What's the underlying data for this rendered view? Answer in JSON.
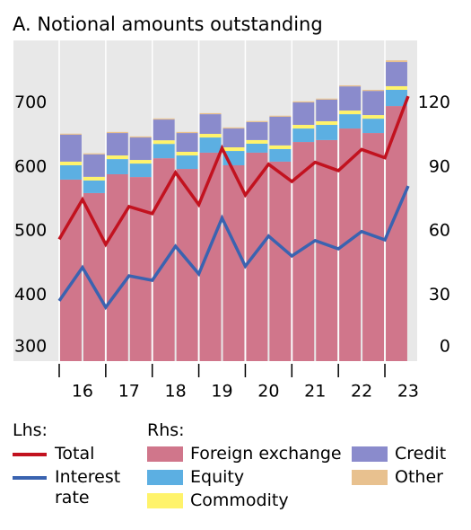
{
  "chart_data": {
    "type": "bar",
    "title": "A. Notional amounts outstanding",
    "categories": [
      "16",
      null,
      "17",
      null,
      "18",
      null,
      "19",
      null,
      "20",
      null,
      "21",
      null,
      "22",
      null,
      "23",
      null
    ],
    "ylim": [
      300,
      800
    ],
    "yticks": [
      300,
      400,
      500,
      600,
      700
    ],
    "y2lim": [
      0,
      150
    ],
    "y2ticks": [
      0,
      30,
      60,
      90,
      120
    ],
    "lhs_label": "Lhs:",
    "rhs_label": "Rhs:",
    "series": [
      {
        "name": "Foreign exchange",
        "color": "#d0768b",
        "axis": "y2",
        "values": [
          84.9,
          78.6,
          87.4,
          86.1,
          94.9,
          89.9,
          97.5,
          91.6,
          97.5,
          93.3,
          102.5,
          103.4,
          108.8,
          106.7,
          119.3,
          null
        ]
      },
      {
        "name": "Equity",
        "color": "#5cafe2",
        "axis": "y2",
        "values": [
          6.7,
          5.9,
          7.1,
          6.3,
          6.7,
          6.3,
          7.1,
          6.7,
          4.2,
          5.9,
          6.3,
          7.1,
          6.7,
          6.7,
          7.6,
          null
        ]
      },
      {
        "name": "Commodity",
        "color": "#fff36b",
        "axis": "y2",
        "values": [
          1.7,
          1.7,
          1.7,
          1.7,
          1.7,
          1.7,
          1.7,
          1.7,
          1.7,
          1.7,
          1.7,
          1.7,
          1.7,
          1.7,
          1.7,
          null
        ]
      },
      {
        "name": "Credit",
        "color": "#8a8bcc",
        "axis": "y2",
        "values": [
          12.6,
          10.5,
          10.5,
          10.5,
          9.7,
          8.8,
          9.2,
          8.8,
          8.4,
          13.4,
          10.5,
          10.1,
          11.3,
          11.3,
          11.3,
          null
        ]
      },
      {
        "name": "Other",
        "color": "#e8c18f",
        "axis": "y2",
        "values": [
          0.5,
          0.5,
          0.5,
          0.5,
          0.5,
          0.5,
          0.5,
          0.5,
          0.5,
          0.5,
          0.5,
          0.5,
          0.5,
          0.5,
          0.8,
          null
        ]
      },
      {
        "name": "Total",
        "color": "#c2121f",
        "type": "line",
        "values": [
          490,
          552,
          482,
          541,
          530,
          594,
          544,
          632,
          559,
          607,
          580,
          610,
          597,
          630,
          617,
          713
        ]
      },
      {
        "name": "Interest rate",
        "color": "#3a63b0",
        "type": "line",
        "values": [
          394,
          446,
          384,
          433,
          426,
          479,
          436,
          523,
          448,
          495,
          464,
          488,
          475,
          502,
          489,
          573
        ]
      }
    ]
  }
}
